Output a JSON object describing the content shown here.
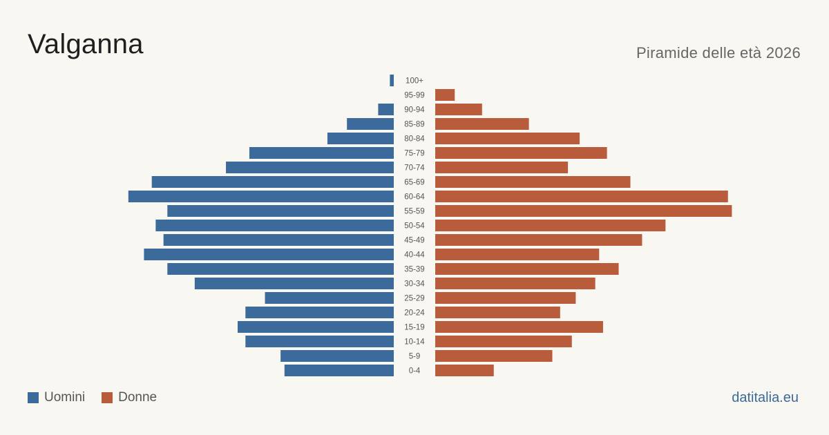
{
  "header": {
    "title": "Valganna",
    "subtitle": "Piramide delle età 2026"
  },
  "legend": {
    "men_label": "Uomini",
    "women_label": "Donne"
  },
  "source": "datitalia.eu",
  "colors": {
    "men": "#3b6a9b",
    "women": "#b95c3b",
    "background": "#f9f7f2"
  },
  "chart_data": {
    "type": "bar",
    "orientation": "horizontal-pyramid",
    "categories": [
      "100+",
      "95-99",
      "90-94",
      "85-89",
      "80-84",
      "75-79",
      "70-74",
      "65-69",
      "60-64",
      "55-59",
      "50-54",
      "45-49",
      "40-44",
      "35-39",
      "30-34",
      "25-29",
      "20-24",
      "15-19",
      "10-14",
      "5-9",
      "0-4"
    ],
    "series": [
      {
        "name": "Uomini",
        "values": [
          1,
          0,
          4,
          12,
          17,
          37,
          43,
          62,
          68,
          58,
          61,
          59,
          64,
          58,
          51,
          33,
          38,
          40,
          38,
          29,
          28
        ]
      },
      {
        "name": "Donne",
        "values": [
          0,
          5,
          12,
          24,
          37,
          44,
          34,
          50,
          75,
          76,
          59,
          53,
          42,
          47,
          41,
          36,
          32,
          43,
          35,
          30,
          15
        ]
      }
    ],
    "xlabel": "",
    "ylabel": "",
    "xlim": [
      0,
      80
    ],
    "grid": false,
    "legend_position": "bottom-left"
  }
}
